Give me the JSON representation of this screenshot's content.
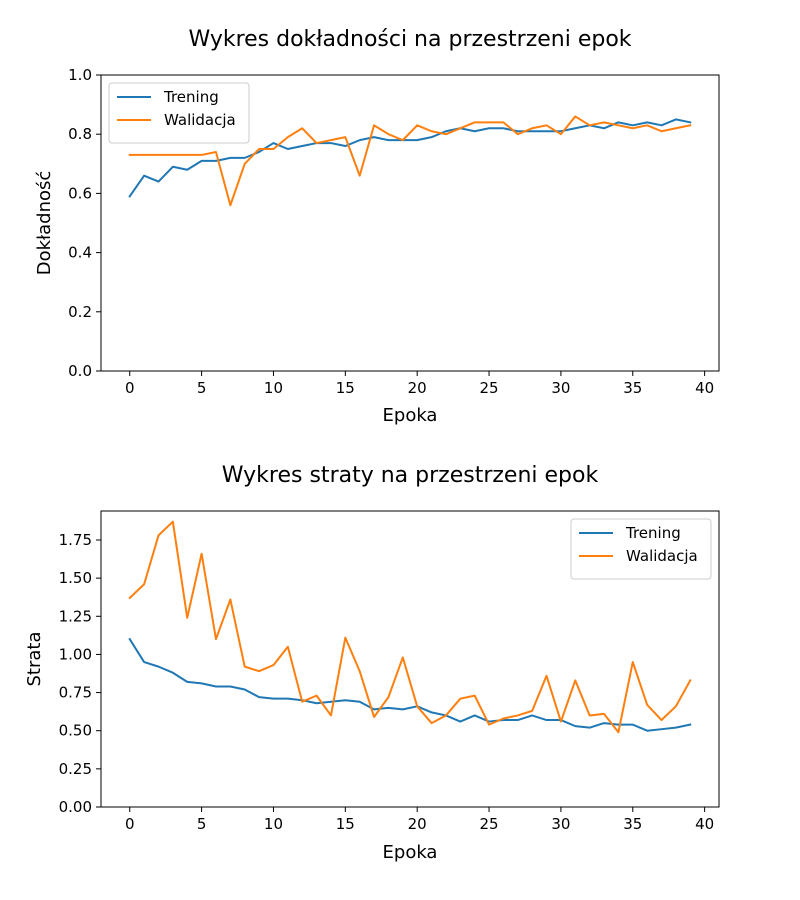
{
  "chart_data": [
    {
      "type": "line",
      "title": "Wykres dokładności na przestrzeni epok",
      "xlabel": "Epoka",
      "ylabel": "Dokładność",
      "xlim": [
        -2,
        41
      ],
      "ylim": [
        0,
        1
      ],
      "xticks": [
        0,
        5,
        10,
        15,
        20,
        25,
        30,
        35,
        40
      ],
      "yticks": [
        0.0,
        0.2,
        0.4,
        0.6,
        0.8,
        1.0
      ],
      "ytick_decimals": 1,
      "grid": false,
      "legend_position": "top-left",
      "x": [
        0,
        1,
        2,
        3,
        4,
        5,
        6,
        7,
        8,
        9,
        10,
        11,
        12,
        13,
        14,
        15,
        16,
        17,
        18,
        19,
        20,
        21,
        22,
        23,
        24,
        25,
        26,
        27,
        28,
        29,
        30,
        31,
        32,
        33,
        34,
        35,
        36,
        37,
        38,
        39
      ],
      "series": [
        {
          "name": "Trening",
          "color": "#1f77b4",
          "values": [
            0.59,
            0.66,
            0.64,
            0.69,
            0.68,
            0.71,
            0.71,
            0.72,
            0.72,
            0.74,
            0.77,
            0.75,
            0.76,
            0.77,
            0.77,
            0.76,
            0.78,
            0.79,
            0.78,
            0.78,
            0.78,
            0.79,
            0.81,
            0.82,
            0.81,
            0.82,
            0.82,
            0.81,
            0.81,
            0.81,
            0.81,
            0.82,
            0.83,
            0.82,
            0.84,
            0.83,
            0.84,
            0.83,
            0.85,
            0.84
          ]
        },
        {
          "name": "Walidacja",
          "color": "#ff7f0e",
          "values": [
            0.73,
            0.73,
            0.73,
            0.73,
            0.73,
            0.73,
            0.74,
            0.56,
            0.7,
            0.75,
            0.75,
            0.79,
            0.82,
            0.77,
            0.78,
            0.79,
            0.66,
            0.83,
            0.8,
            0.78,
            0.83,
            0.81,
            0.8,
            0.82,
            0.84,
            0.84,
            0.84,
            0.8,
            0.82,
            0.83,
            0.8,
            0.86,
            0.83,
            0.84,
            0.83,
            0.82,
            0.83,
            0.81,
            0.82,
            0.83
          ]
        }
      ]
    },
    {
      "type": "line",
      "title": "Wykres straty na przestrzeni epok",
      "xlabel": "Epoka",
      "ylabel": "Strata",
      "xlim": [
        -2,
        41
      ],
      "ylim": [
        0,
        1.94
      ],
      "xticks": [
        0,
        5,
        10,
        15,
        20,
        25,
        30,
        35,
        40
      ],
      "yticks": [
        0.0,
        0.25,
        0.5,
        0.75,
        1.0,
        1.25,
        1.5,
        1.75
      ],
      "ytick_decimals": 2,
      "grid": false,
      "legend_position": "top-right",
      "x": [
        0,
        1,
        2,
        3,
        4,
        5,
        6,
        7,
        8,
        9,
        10,
        11,
        12,
        13,
        14,
        15,
        16,
        17,
        18,
        19,
        20,
        21,
        22,
        23,
        24,
        25,
        26,
        27,
        28,
        29,
        30,
        31,
        32,
        33,
        34,
        35,
        36,
        37,
        38,
        39
      ],
      "series": [
        {
          "name": "Trening",
          "color": "#1f77b4",
          "values": [
            1.1,
            0.95,
            0.92,
            0.88,
            0.82,
            0.81,
            0.79,
            0.79,
            0.77,
            0.72,
            0.71,
            0.71,
            0.7,
            0.68,
            0.69,
            0.7,
            0.69,
            0.64,
            0.65,
            0.64,
            0.66,
            0.62,
            0.6,
            0.56,
            0.6,
            0.56,
            0.57,
            0.57,
            0.6,
            0.57,
            0.57,
            0.53,
            0.52,
            0.55,
            0.54,
            0.54,
            0.5,
            0.51,
            0.52,
            0.54
          ]
        },
        {
          "name": "Walidacja",
          "color": "#ff7f0e",
          "values": [
            1.37,
            1.46,
            1.78,
            1.87,
            1.24,
            1.66,
            1.1,
            1.36,
            0.92,
            0.89,
            0.93,
            1.05,
            0.69,
            0.73,
            0.6,
            1.11,
            0.89,
            0.59,
            0.72,
            0.98,
            0.66,
            0.55,
            0.6,
            0.71,
            0.73,
            0.54,
            0.58,
            0.6,
            0.63,
            0.86,
            0.56,
            0.83,
            0.6,
            0.61,
            0.49,
            0.95,
            0.67,
            0.57,
            0.66,
            0.83
          ]
        }
      ]
    }
  ]
}
